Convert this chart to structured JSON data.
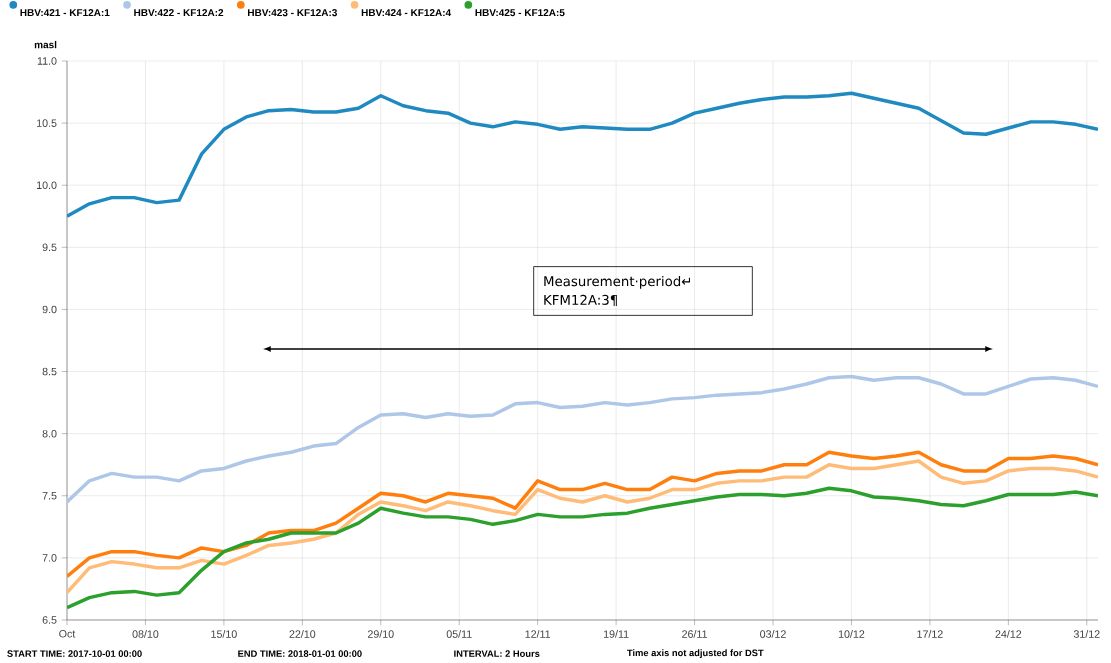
{
  "chart_data": {
    "type": "line",
    "ylabel": "masl",
    "x": [
      "2017-10-01",
      "2017-10-03",
      "2017-10-05",
      "2017-10-07",
      "2017-10-09",
      "2017-10-11",
      "2017-10-13",
      "2017-10-15",
      "2017-10-17",
      "2017-10-19",
      "2017-10-21",
      "2017-10-23",
      "2017-10-25",
      "2017-10-27",
      "2017-10-29",
      "2017-10-31",
      "2017-11-02",
      "2017-11-04",
      "2017-11-06",
      "2017-11-08",
      "2017-11-10",
      "2017-11-12",
      "2017-11-14",
      "2017-11-16",
      "2017-11-18",
      "2017-11-20",
      "2017-11-22",
      "2017-11-24",
      "2017-11-26",
      "2017-11-28",
      "2017-11-30",
      "2017-12-02",
      "2017-12-04",
      "2017-12-06",
      "2017-12-08",
      "2017-12-10",
      "2017-12-12",
      "2017-12-14",
      "2017-12-16",
      "2017-12-18",
      "2017-12-20",
      "2017-12-22",
      "2017-12-24",
      "2017-12-26",
      "2017-12-28",
      "2017-12-30",
      "2018-01-01"
    ],
    "series": [
      {
        "name": "HBV:421 - KF12A:1",
        "color": "#1f8ac0",
        "values": [
          9.75,
          9.85,
          9.9,
          9.9,
          9.86,
          9.88,
          10.25,
          10.45,
          10.55,
          10.6,
          10.61,
          10.59,
          10.59,
          10.62,
          10.72,
          10.64,
          10.6,
          10.58,
          10.5,
          10.47,
          10.51,
          10.49,
          10.45,
          10.47,
          10.46,
          10.45,
          10.45,
          10.5,
          10.58,
          10.62,
          10.66,
          10.69,
          10.71,
          10.71,
          10.72,
          10.74,
          10.7,
          10.66,
          10.62,
          10.52,
          10.42,
          10.41,
          10.46,
          10.51,
          10.51,
          10.49,
          10.45
        ]
      },
      {
        "name": "HBV:422 - KF12A:2",
        "color": "#aec7e8",
        "values": [
          7.45,
          7.62,
          7.68,
          7.65,
          7.65,
          7.62,
          7.7,
          7.72,
          7.78,
          7.82,
          7.85,
          7.9,
          7.92,
          8.05,
          8.15,
          8.16,
          8.13,
          8.16,
          8.14,
          8.15,
          8.24,
          8.25,
          8.21,
          8.22,
          8.25,
          8.23,
          8.25,
          8.28,
          8.29,
          8.31,
          8.32,
          8.33,
          8.36,
          8.4,
          8.45,
          8.46,
          8.43,
          8.45,
          8.45,
          8.4,
          8.32,
          8.32,
          8.38,
          8.44,
          8.45,
          8.43,
          8.38
        ]
      },
      {
        "name": "HBV:423 - KF12A:3",
        "color": "#ff7f0e",
        "values": [
          6.85,
          7.0,
          7.05,
          7.05,
          7.02,
          7.0,
          7.08,
          7.05,
          7.1,
          7.2,
          7.22,
          7.22,
          7.28,
          7.4,
          7.52,
          7.5,
          7.45,
          7.52,
          7.5,
          7.48,
          7.4,
          7.62,
          7.55,
          7.55,
          7.6,
          7.55,
          7.55,
          7.65,
          7.62,
          7.68,
          7.7,
          7.7,
          7.75,
          7.75,
          7.85,
          7.82,
          7.8,
          7.82,
          7.85,
          7.75,
          7.7,
          7.7,
          7.8,
          7.8,
          7.82,
          7.8,
          7.75
        ]
      },
      {
        "name": "HBV:424 - KF12A:4",
        "color": "#ffbb78",
        "values": [
          6.72,
          6.92,
          6.97,
          6.95,
          6.92,
          6.92,
          6.98,
          6.95,
          7.02,
          7.1,
          7.12,
          7.15,
          7.2,
          7.35,
          7.45,
          7.42,
          7.38,
          7.45,
          7.42,
          7.38,
          7.35,
          7.55,
          7.48,
          7.45,
          7.5,
          7.45,
          7.48,
          7.55,
          7.55,
          7.6,
          7.62,
          7.62,
          7.65,
          7.65,
          7.75,
          7.72,
          7.72,
          7.75,
          7.78,
          7.65,
          7.6,
          7.62,
          7.7,
          7.72,
          7.72,
          7.7,
          7.65
        ]
      },
      {
        "name": "HBV:425 - KF12A:5",
        "color": "#2ca02c",
        "values": [
          6.6,
          6.68,
          6.72,
          6.73,
          6.7,
          6.72,
          6.9,
          7.05,
          7.12,
          7.15,
          7.2,
          7.2,
          7.2,
          7.28,
          7.4,
          7.36,
          7.33,
          7.33,
          7.31,
          7.27,
          7.3,
          7.35,
          7.33,
          7.33,
          7.35,
          7.36,
          7.4,
          7.43,
          7.46,
          7.49,
          7.51,
          7.51,
          7.5,
          7.52,
          7.56,
          7.54,
          7.49,
          7.48,
          7.46,
          7.43,
          7.42,
          7.46,
          7.51,
          7.51,
          7.51,
          7.53,
          7.5
        ]
      }
    ],
    "xlim": [
      "2017-10-01",
      "2018-01-01"
    ],
    "xticks": [
      {
        "value": "2017-10-01",
        "label": "Oct"
      },
      {
        "value": "2017-10-08",
        "label": "08/10"
      },
      {
        "value": "2017-10-15",
        "label": "15/10"
      },
      {
        "value": "2017-10-22",
        "label": "22/10"
      },
      {
        "value": "2017-10-29",
        "label": "29/10"
      },
      {
        "value": "2017-11-05",
        "label": "05/11"
      },
      {
        "value": "2017-11-12",
        "label": "12/11"
      },
      {
        "value": "2017-11-19",
        "label": "19/11"
      },
      {
        "value": "2017-11-26",
        "label": "26/11"
      },
      {
        "value": "2017-12-03",
        "label": "03/12"
      },
      {
        "value": "2017-12-10",
        "label": "10/12"
      },
      {
        "value": "2017-12-17",
        "label": "17/12"
      },
      {
        "value": "2017-12-24",
        "label": "24/12"
      },
      {
        "value": "2017-12-31",
        "label": "31/12"
      }
    ],
    "ylim": [
      6.5,
      11.0
    ],
    "yticks": [
      {
        "value": 6.5,
        "label": "6.5"
      },
      {
        "value": 7.0,
        "label": "7.0"
      },
      {
        "value": 7.5,
        "label": "7.5"
      },
      {
        "value": 8.0,
        "label": "8.0"
      },
      {
        "value": 8.5,
        "label": "8.5"
      },
      {
        "value": 9.0,
        "label": "9.0"
      },
      {
        "value": 9.5,
        "label": "9.5"
      },
      {
        "value": 10.0,
        "label": "10.0"
      },
      {
        "value": 10.5,
        "label": "10.5"
      },
      {
        "value": 11.0,
        "label": "11.0"
      }
    ],
    "grid": true,
    "legend": "top",
    "annotations": [
      "Measurement·period↵ KFM12A:3¶",
      "START TIME: 2017-10-01 00:00",
      "END TIME: 2018-01-01 00:00",
      "INTERVAL: 2 Hours",
      "Time axis not adjusted for DST"
    ]
  }
}
